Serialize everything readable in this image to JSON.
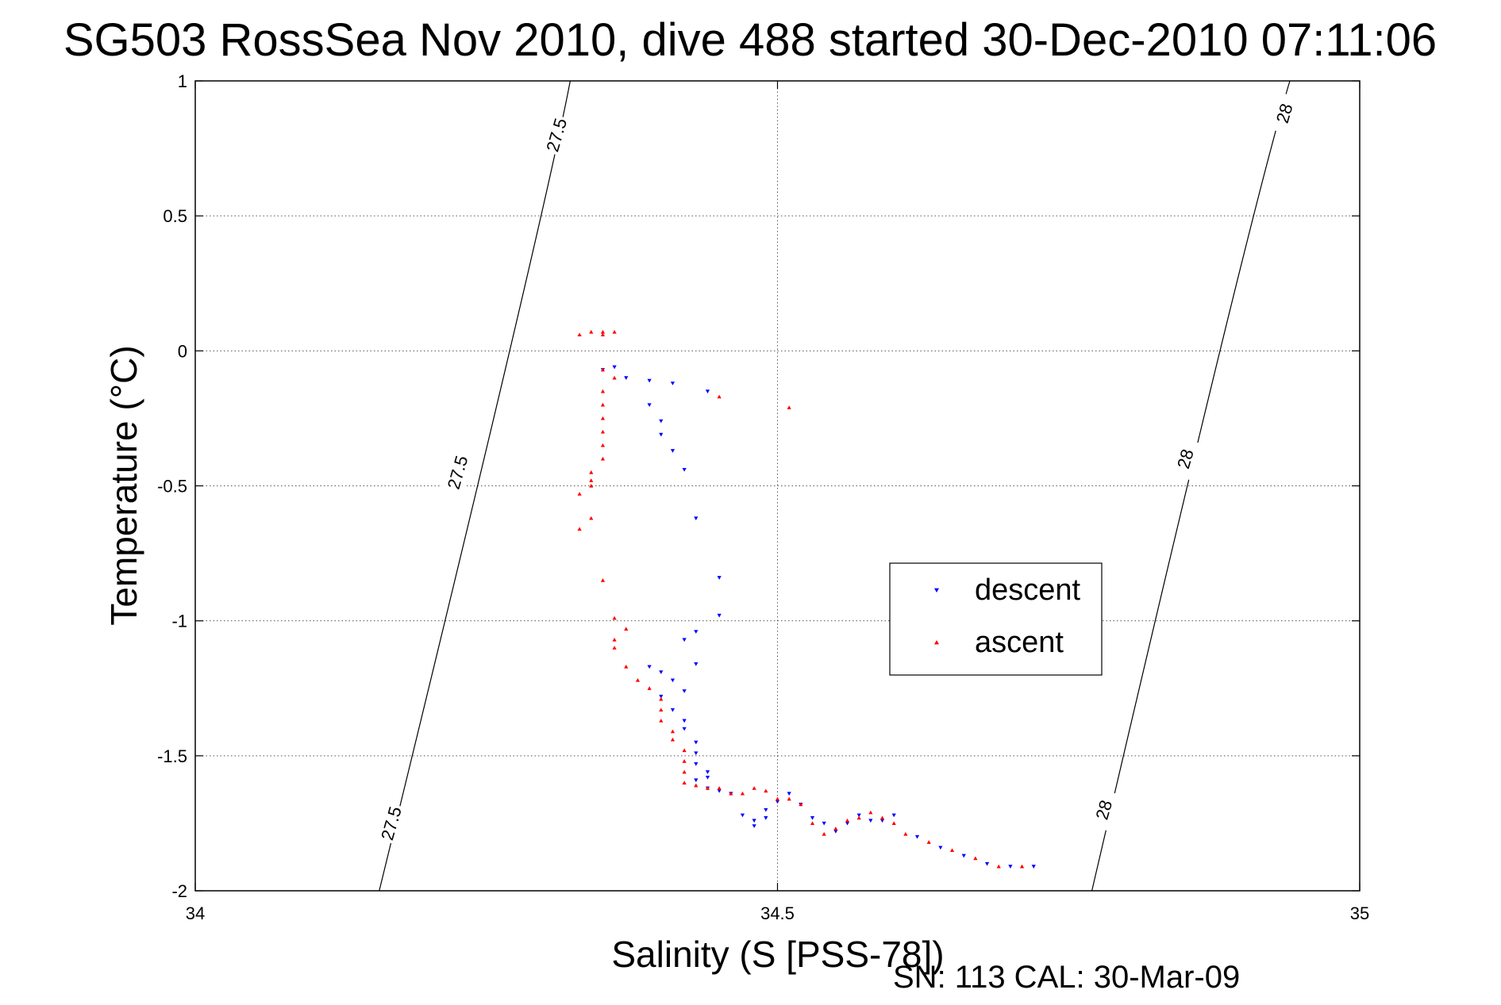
{
  "chart_data": {
    "type": "scatter",
    "title": "SG503 RossSea Nov 2010, dive 488 started 30-Dec-2010 07:11:06",
    "xlabel": "Salinity (S [PSS-78])",
    "ylabel": "Temperature (°C)",
    "xlim": [
      34,
      35
    ],
    "ylim": [
      -2,
      1
    ],
    "xticks": [
      34,
      34.5,
      35
    ],
    "xtick_labels": [
      "34",
      "34.5",
      "35"
    ],
    "yticks": [
      1,
      0.5,
      0,
      -0.5,
      -1,
      -1.5,
      -2
    ],
    "ytick_labels": [
      "1",
      "0.5",
      "0",
      "-0.5",
      "-1",
      "-1.5",
      "-2"
    ],
    "grid": true,
    "legend_placement": "center-right",
    "footnote": "SN: 113  CAL: 30-Mar-09",
    "colors": {
      "descent": "#0000ff",
      "ascent": "#ff0000",
      "contour": "#000000"
    },
    "isopycnals": [
      {
        "label": "27.5",
        "points": [
          [
            34.158,
            -2.0
          ],
          [
            34.27,
            0.0
          ],
          [
            34.322,
            1.0
          ]
        ],
        "label_positions": [
          [
            34.168,
            -1.75
          ],
          [
            34.225,
            -0.45
          ],
          [
            34.31,
            0.8
          ]
        ]
      },
      {
        "label": "28",
        "points": [
          [
            34.77,
            -2.0
          ],
          [
            34.88,
            0.0
          ],
          [
            34.94,
            1.0
          ]
        ],
        "label_positions": [
          [
            34.78,
            -1.7
          ],
          [
            34.85,
            -0.4
          ],
          [
            34.935,
            0.88
          ]
        ]
      }
    ],
    "series": [
      {
        "name": "descent",
        "marker": "triangle-down",
        "points": [
          [
            34.35,
            -0.07
          ],
          [
            34.36,
            -0.06
          ],
          [
            34.37,
            -0.1
          ],
          [
            34.39,
            -0.11
          ],
          [
            34.41,
            -0.12
          ],
          [
            34.44,
            -0.15
          ],
          [
            34.39,
            -0.2
          ],
          [
            34.4,
            -0.26
          ],
          [
            34.4,
            -0.31
          ],
          [
            34.41,
            -0.37
          ],
          [
            34.42,
            -0.44
          ],
          [
            34.43,
            -0.62
          ],
          [
            34.45,
            -0.84
          ],
          [
            34.45,
            -0.98
          ],
          [
            34.43,
            -1.04
          ],
          [
            34.42,
            -1.07
          ],
          [
            34.43,
            -1.16
          ],
          [
            34.39,
            -1.17
          ],
          [
            34.4,
            -1.19
          ],
          [
            34.41,
            -1.22
          ],
          [
            34.42,
            -1.26
          ],
          [
            34.4,
            -1.28
          ],
          [
            34.41,
            -1.33
          ],
          [
            34.42,
            -1.37
          ],
          [
            34.42,
            -1.4
          ],
          [
            34.43,
            -1.45
          ],
          [
            34.43,
            -1.49
          ],
          [
            34.43,
            -1.53
          ],
          [
            34.44,
            -1.56
          ],
          [
            34.43,
            -1.59
          ],
          [
            34.44,
            -1.58
          ],
          [
            34.44,
            -1.62
          ],
          [
            34.45,
            -1.63
          ],
          [
            34.46,
            -1.64
          ],
          [
            34.47,
            -1.72
          ],
          [
            34.48,
            -1.76
          ],
          [
            34.48,
            -1.74
          ],
          [
            34.49,
            -1.73
          ],
          [
            34.49,
            -1.7
          ],
          [
            34.5,
            -1.67
          ],
          [
            34.51,
            -1.64
          ],
          [
            34.52,
            -1.68
          ],
          [
            34.53,
            -1.73
          ],
          [
            34.54,
            -1.75
          ],
          [
            34.55,
            -1.78
          ],
          [
            34.56,
            -1.75
          ],
          [
            34.57,
            -1.72
          ],
          [
            34.58,
            -1.74
          ],
          [
            34.59,
            -1.74
          ],
          [
            34.6,
            -1.72
          ],
          [
            34.62,
            -1.8
          ],
          [
            34.64,
            -1.84
          ],
          [
            34.66,
            -1.87
          ],
          [
            34.68,
            -1.9
          ],
          [
            34.7,
            -1.91
          ],
          [
            34.72,
            -1.91
          ]
        ]
      },
      {
        "name": "ascent",
        "marker": "triangle-up",
        "points": [
          [
            34.33,
            0.06
          ],
          [
            34.34,
            0.07
          ],
          [
            34.35,
            0.07
          ],
          [
            34.36,
            0.07
          ],
          [
            34.35,
            0.06
          ],
          [
            34.35,
            -0.07
          ],
          [
            34.36,
            -0.1
          ],
          [
            34.35,
            -0.15
          ],
          [
            34.35,
            -0.2
          ],
          [
            34.35,
            -0.25
          ],
          [
            34.35,
            -0.3
          ],
          [
            34.35,
            -0.35
          ],
          [
            34.35,
            -0.4
          ],
          [
            34.34,
            -0.45
          ],
          [
            34.34,
            -0.48
          ],
          [
            34.34,
            -0.5
          ],
          [
            34.33,
            -0.53
          ],
          [
            34.34,
            -0.62
          ],
          [
            34.33,
            -0.66
          ],
          [
            34.35,
            -0.85
          ],
          [
            34.36,
            -0.99
          ],
          [
            34.37,
            -1.03
          ],
          [
            34.36,
            -1.07
          ],
          [
            34.36,
            -1.1
          ],
          [
            34.37,
            -1.17
          ],
          [
            34.38,
            -1.22
          ],
          [
            34.39,
            -1.25
          ],
          [
            34.4,
            -1.29
          ],
          [
            34.4,
            -1.33
          ],
          [
            34.4,
            -1.37
          ],
          [
            34.41,
            -1.41
          ],
          [
            34.41,
            -1.44
          ],
          [
            34.42,
            -1.48
          ],
          [
            34.42,
            -1.52
          ],
          [
            34.42,
            -1.56
          ],
          [
            34.42,
            -1.6
          ],
          [
            34.43,
            -1.61
          ],
          [
            34.44,
            -1.62
          ],
          [
            34.45,
            -1.62
          ],
          [
            34.46,
            -1.64
          ],
          [
            34.47,
            -1.64
          ],
          [
            34.48,
            -1.62
          ],
          [
            34.49,
            -1.63
          ],
          [
            34.5,
            -1.66
          ],
          [
            34.51,
            -1.66
          ],
          [
            34.52,
            -1.68
          ],
          [
            34.53,
            -1.75
          ],
          [
            34.54,
            -1.79
          ],
          [
            34.55,
            -1.77
          ],
          [
            34.56,
            -1.74
          ],
          [
            34.57,
            -1.73
          ],
          [
            34.58,
            -1.71
          ],
          [
            34.59,
            -1.73
          ],
          [
            34.6,
            -1.75
          ],
          [
            34.61,
            -1.79
          ],
          [
            34.63,
            -1.82
          ],
          [
            34.65,
            -1.85
          ],
          [
            34.67,
            -1.88
          ],
          [
            34.69,
            -1.91
          ],
          [
            34.71,
            -1.91
          ],
          [
            34.45,
            -0.17
          ],
          [
            34.51,
            -0.21
          ]
        ]
      }
    ]
  }
}
